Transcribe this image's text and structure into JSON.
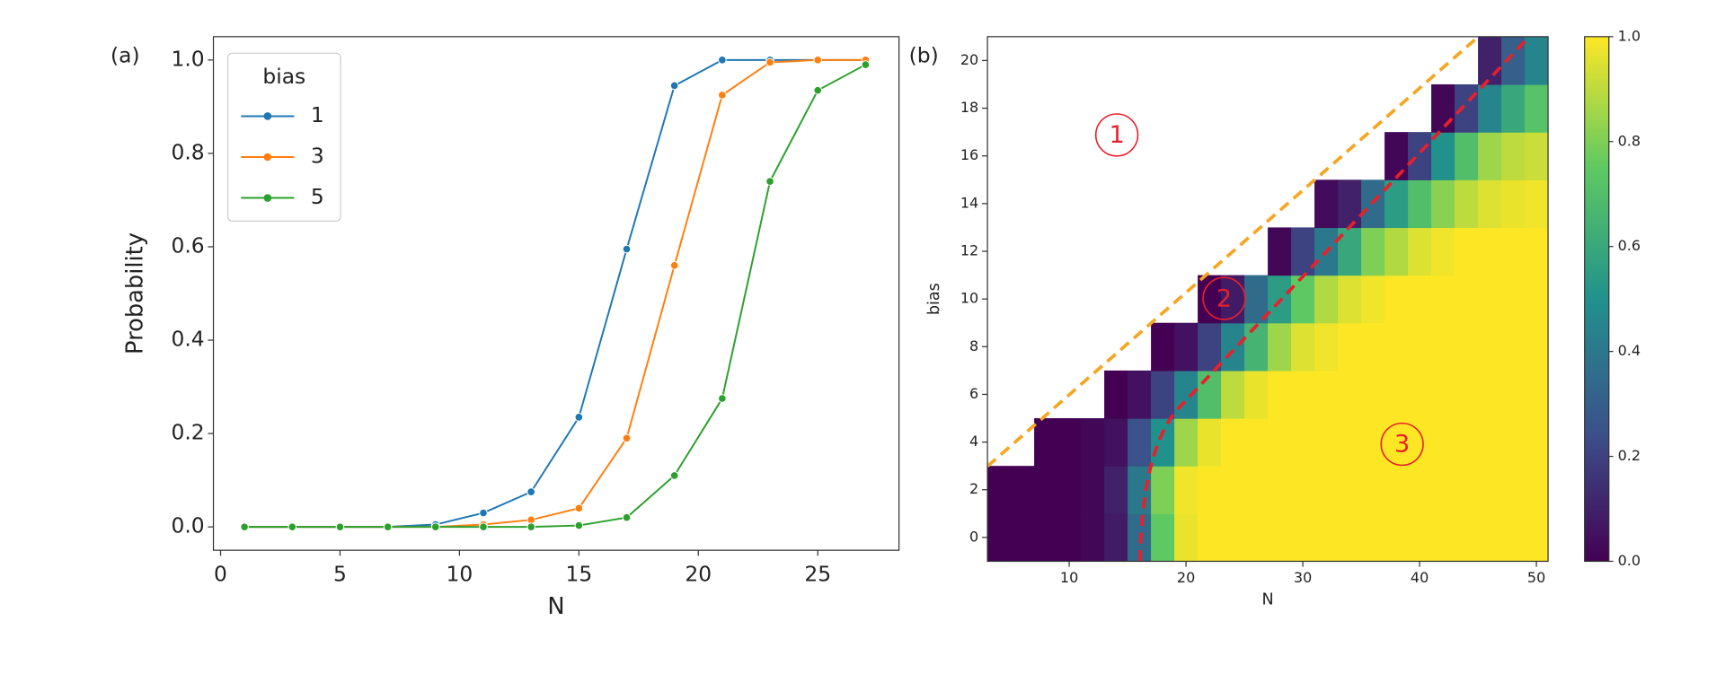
{
  "chart_data": [
    {
      "type": "line",
      "panel_label": "(a)",
      "xlabel": "N",
      "ylabel": "Probability",
      "x": [
        1,
        3,
        5,
        7,
        9,
        11,
        13,
        15,
        17,
        19,
        21,
        23,
        25,
        27
      ],
      "series": [
        {
          "name": "1",
          "color": "#1f77b4",
          "values": [
            0,
            0,
            0,
            0,
            0.005,
            0.03,
            0.075,
            0.235,
            0.595,
            0.945,
            1.0,
            1.0,
            1.0,
            1.0
          ]
        },
        {
          "name": "3",
          "color": "#ff7f0e",
          "values": [
            0,
            0,
            0,
            0,
            0,
            0.005,
            0.015,
            0.04,
            0.19,
            0.56,
            0.925,
            0.995,
            1.0,
            1.0
          ]
        },
        {
          "name": "5",
          "color": "#2ca02c",
          "values": [
            0,
            0,
            0,
            0,
            0,
            0,
            0,
            0.003,
            0.02,
            0.11,
            0.275,
            0.74,
            0.935,
            0.99
          ]
        }
      ],
      "legend_title": "bias",
      "legend": "upper left",
      "xlim": [
        -0.3,
        28.4
      ],
      "ylim": [
        -0.05,
        1.05
      ],
      "xticks": [
        0,
        5,
        10,
        15,
        20,
        25
      ],
      "yticks": [
        {
          "value": 0,
          "label": "0.0"
        },
        0.2,
        0.4,
        0.6,
        0.8,
        {
          "value": 1,
          "label": "1.0"
        }
      ]
    },
    {
      "type": "heatmap",
      "panel_label": "(b)",
      "xlabel": "N",
      "ylabel": "bias",
      "colormap": "viridis",
      "x": [
        4,
        6,
        8,
        10,
        12,
        14,
        16,
        18,
        20,
        22,
        24,
        26,
        28,
        30,
        32,
        34,
        36,
        38,
        40,
        42,
        44,
        46,
        48,
        50
      ],
      "y": [
        0,
        2,
        4,
        6,
        8,
        10,
        12,
        14,
        16,
        18,
        20
      ],
      "values": [
        [
          0,
          0,
          0,
          0,
          0.02,
          0.08,
          0.35,
          0.75,
          0.97,
          1,
          1,
          1,
          1,
          1,
          1,
          1,
          1,
          1,
          1,
          1,
          1,
          1,
          1,
          1
        ],
        [
          0,
          0,
          0,
          0,
          0.02,
          0.1,
          0.4,
          0.8,
          0.98,
          1,
          1,
          1,
          1,
          1,
          1,
          1,
          1,
          1,
          1,
          1,
          1,
          1,
          1,
          1
        ],
        [
          null,
          null,
          0,
          0,
          0.02,
          0.05,
          0.25,
          0.5,
          0.85,
          0.97,
          1,
          1,
          1,
          1,
          1,
          1,
          1,
          1,
          1,
          1,
          1,
          1,
          1,
          1
        ],
        [
          null,
          null,
          null,
          null,
          null,
          0,
          0.05,
          0.2,
          0.45,
          0.7,
          0.9,
          0.97,
          1,
          1,
          1,
          1,
          1,
          1,
          1,
          1,
          1,
          1,
          1,
          1
        ],
        [
          null,
          null,
          null,
          null,
          null,
          null,
          null,
          0,
          0.05,
          0.2,
          0.45,
          0.65,
          0.85,
          0.95,
          0.98,
          1,
          1,
          1,
          1,
          1,
          1,
          1,
          1,
          1
        ],
        [
          null,
          null,
          null,
          null,
          null,
          null,
          null,
          null,
          null,
          0,
          0.08,
          0.35,
          0.55,
          0.75,
          0.88,
          0.95,
          0.98,
          1,
          1,
          1,
          1,
          1,
          1,
          1
        ],
        [
          null,
          null,
          null,
          null,
          null,
          null,
          null,
          null,
          null,
          null,
          null,
          null,
          0.02,
          0.2,
          0.4,
          0.6,
          0.8,
          0.88,
          0.95,
          0.98,
          1,
          1,
          1,
          1
        ],
        [
          null,
          null,
          null,
          null,
          null,
          null,
          null,
          null,
          null,
          null,
          null,
          null,
          null,
          null,
          0.03,
          0.1,
          0.35,
          0.55,
          0.7,
          0.82,
          0.9,
          0.95,
          0.97,
          0.98
        ],
        [
          null,
          null,
          null,
          null,
          null,
          null,
          null,
          null,
          null,
          null,
          null,
          null,
          null,
          null,
          null,
          null,
          null,
          0.02,
          0.2,
          0.5,
          0.7,
          0.85,
          0.9,
          0.92
        ],
        [
          null,
          null,
          null,
          null,
          null,
          null,
          null,
          null,
          null,
          null,
          null,
          null,
          null,
          null,
          null,
          null,
          null,
          null,
          null,
          0.02,
          0.2,
          0.45,
          0.6,
          0.72
        ],
        [
          null,
          null,
          null,
          null,
          null,
          null,
          null,
          null,
          null,
          null,
          null,
          null,
          null,
          null,
          null,
          null,
          null,
          null,
          null,
          null,
          null,
          0.1,
          0.3,
          0.45
        ]
      ],
      "xlim": [
        3,
        51
      ],
      "ylim": [
        -1,
        21
      ],
      "xticks": [
        10,
        20,
        30,
        40,
        50
      ],
      "yticks": [
        0,
        2,
        4,
        6,
        8,
        10,
        12,
        14,
        16,
        18,
        20
      ],
      "clim": [
        0,
        1
      ],
      "cticks": [
        {
          "value": 0,
          "label": "0.0"
        },
        0.2,
        0.4,
        0.6,
        0.8,
        {
          "value": 1,
          "label": "1.0"
        }
      ],
      "annotations": [
        "1",
        "2",
        "3"
      ]
    }
  ]
}
